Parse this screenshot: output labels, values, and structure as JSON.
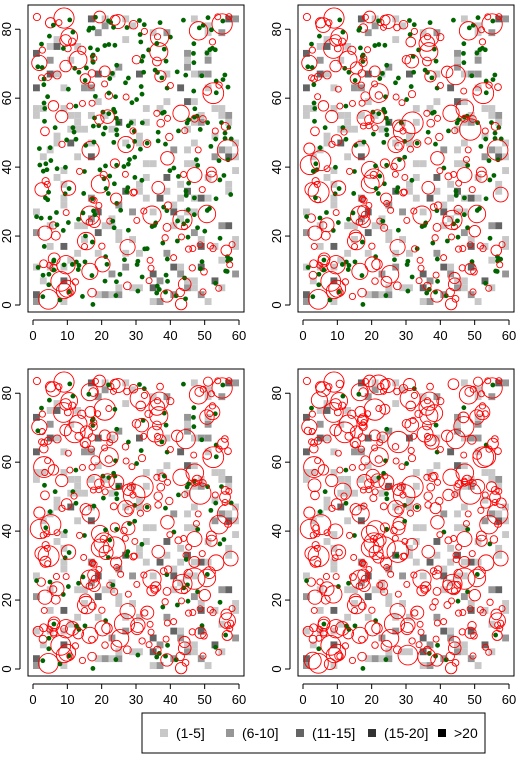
{
  "colors": {
    "tree_point": "#006400",
    "open_circle": "#ff0000",
    "axis": "#000000"
  },
  "legend": {
    "items": [
      {
        "label": "(1-5]",
        "color": "#c8c8c8"
      },
      {
        "label": "(6-10]",
        "color": "#969696"
      },
      {
        "label": "(11-15]",
        "color": "#646464"
      },
      {
        "label": "(15-20]",
        "color": "#323232"
      },
      {
        "label": ">20",
        "color": "#000000"
      }
    ]
  },
  "chart_data": [
    {
      "type": "scatter",
      "panel": "top-left",
      "xlim": [
        0,
        60
      ],
      "ylim": [
        0,
        85
      ],
      "xticks": [
        0,
        10,
        20,
        30,
        40,
        50,
        60
      ],
      "yticks": [
        0,
        20,
        40,
        60,
        80
      ],
      "grid": false,
      "point_density": 0.3
    },
    {
      "type": "scatter",
      "panel": "top-right",
      "xlim": [
        0,
        60
      ],
      "ylim": [
        0,
        85
      ],
      "xticks": [
        0,
        10,
        20,
        30,
        40,
        50,
        60
      ],
      "yticks": [
        0,
        20,
        40,
        60,
        80
      ],
      "grid": false,
      "point_density": 0.5
    },
    {
      "type": "scatter",
      "panel": "bottom-left",
      "xlim": [
        0,
        60
      ],
      "ylim": [
        0,
        85
      ],
      "xticks": [
        0,
        10,
        20,
        30,
        40,
        50,
        60
      ],
      "yticks": [
        0,
        20,
        40,
        60,
        80
      ],
      "grid": false,
      "point_density": 0.7
    },
    {
      "type": "scatter",
      "panel": "bottom-right",
      "xlim": [
        0,
        60
      ],
      "ylim": [
        0,
        85
      ],
      "xticks": [
        0,
        10,
        20,
        30,
        40,
        50,
        60
      ],
      "yticks": [
        0,
        20,
        40,
        60,
        80
      ],
      "grid": false,
      "point_density": 0.85
    }
  ]
}
